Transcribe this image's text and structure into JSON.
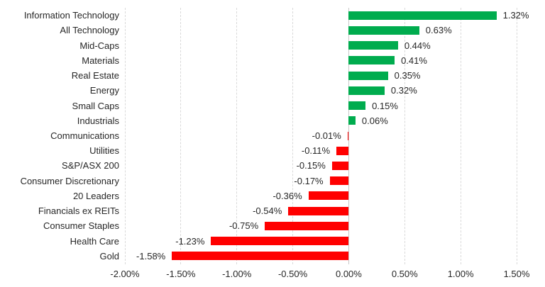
{
  "chart_data": {
    "type": "bar",
    "orientation": "horizontal",
    "title": "",
    "xlabel": "",
    "ylabel": "",
    "legend": "none",
    "grid": "vertical-dashed",
    "xlim": [
      -2.0,
      1.5
    ],
    "x_ticks": [
      -2.0,
      -1.5,
      -1.0,
      -0.5,
      0.0,
      0.5,
      1.0,
      1.5
    ],
    "x_tick_labels": [
      "-2.00%",
      "-1.50%",
      "-1.00%",
      "-0.50%",
      "0.00%",
      "0.50%",
      "1.00%",
      "1.50%"
    ],
    "positive_color": "#00AC4E",
    "negative_color": "#FF0000",
    "gridline_color": "#D9D9D9",
    "text_color": "#262626",
    "points": [
      {
        "category": "Information Technology",
        "value": 1.32,
        "label": "1.32%"
      },
      {
        "category": "All Technology",
        "value": 0.63,
        "label": "0.63%"
      },
      {
        "category": "Mid-Caps",
        "value": 0.44,
        "label": "0.44%"
      },
      {
        "category": "Materials",
        "value": 0.41,
        "label": "0.41%"
      },
      {
        "category": "Real Estate",
        "value": 0.35,
        "label": "0.35%"
      },
      {
        "category": "Energy",
        "value": 0.32,
        "label": "0.32%"
      },
      {
        "category": "Small Caps",
        "value": 0.15,
        "label": "0.15%"
      },
      {
        "category": "Industrials",
        "value": 0.06,
        "label": "0.06%"
      },
      {
        "category": "Communications",
        "value": -0.01,
        "label": "-0.01%"
      },
      {
        "category": "Utilities",
        "value": -0.11,
        "label": "-0.11%"
      },
      {
        "category": "S&P/ASX 200",
        "value": -0.15,
        "label": "-0.15%"
      },
      {
        "category": "Consumer Discretionary",
        "value": -0.17,
        "label": "-0.17%"
      },
      {
        "category": "20 Leaders",
        "value": -0.36,
        "label": "-0.36%"
      },
      {
        "category": "Financials ex REITs",
        "value": -0.54,
        "label": "-0.54%"
      },
      {
        "category": "Consumer Staples",
        "value": -0.75,
        "label": "-0.75%"
      },
      {
        "category": "Health Care",
        "value": -1.23,
        "label": "-1.23%"
      },
      {
        "category": "Gold",
        "value": -1.58,
        "label": "-1.58%"
      }
    ]
  }
}
